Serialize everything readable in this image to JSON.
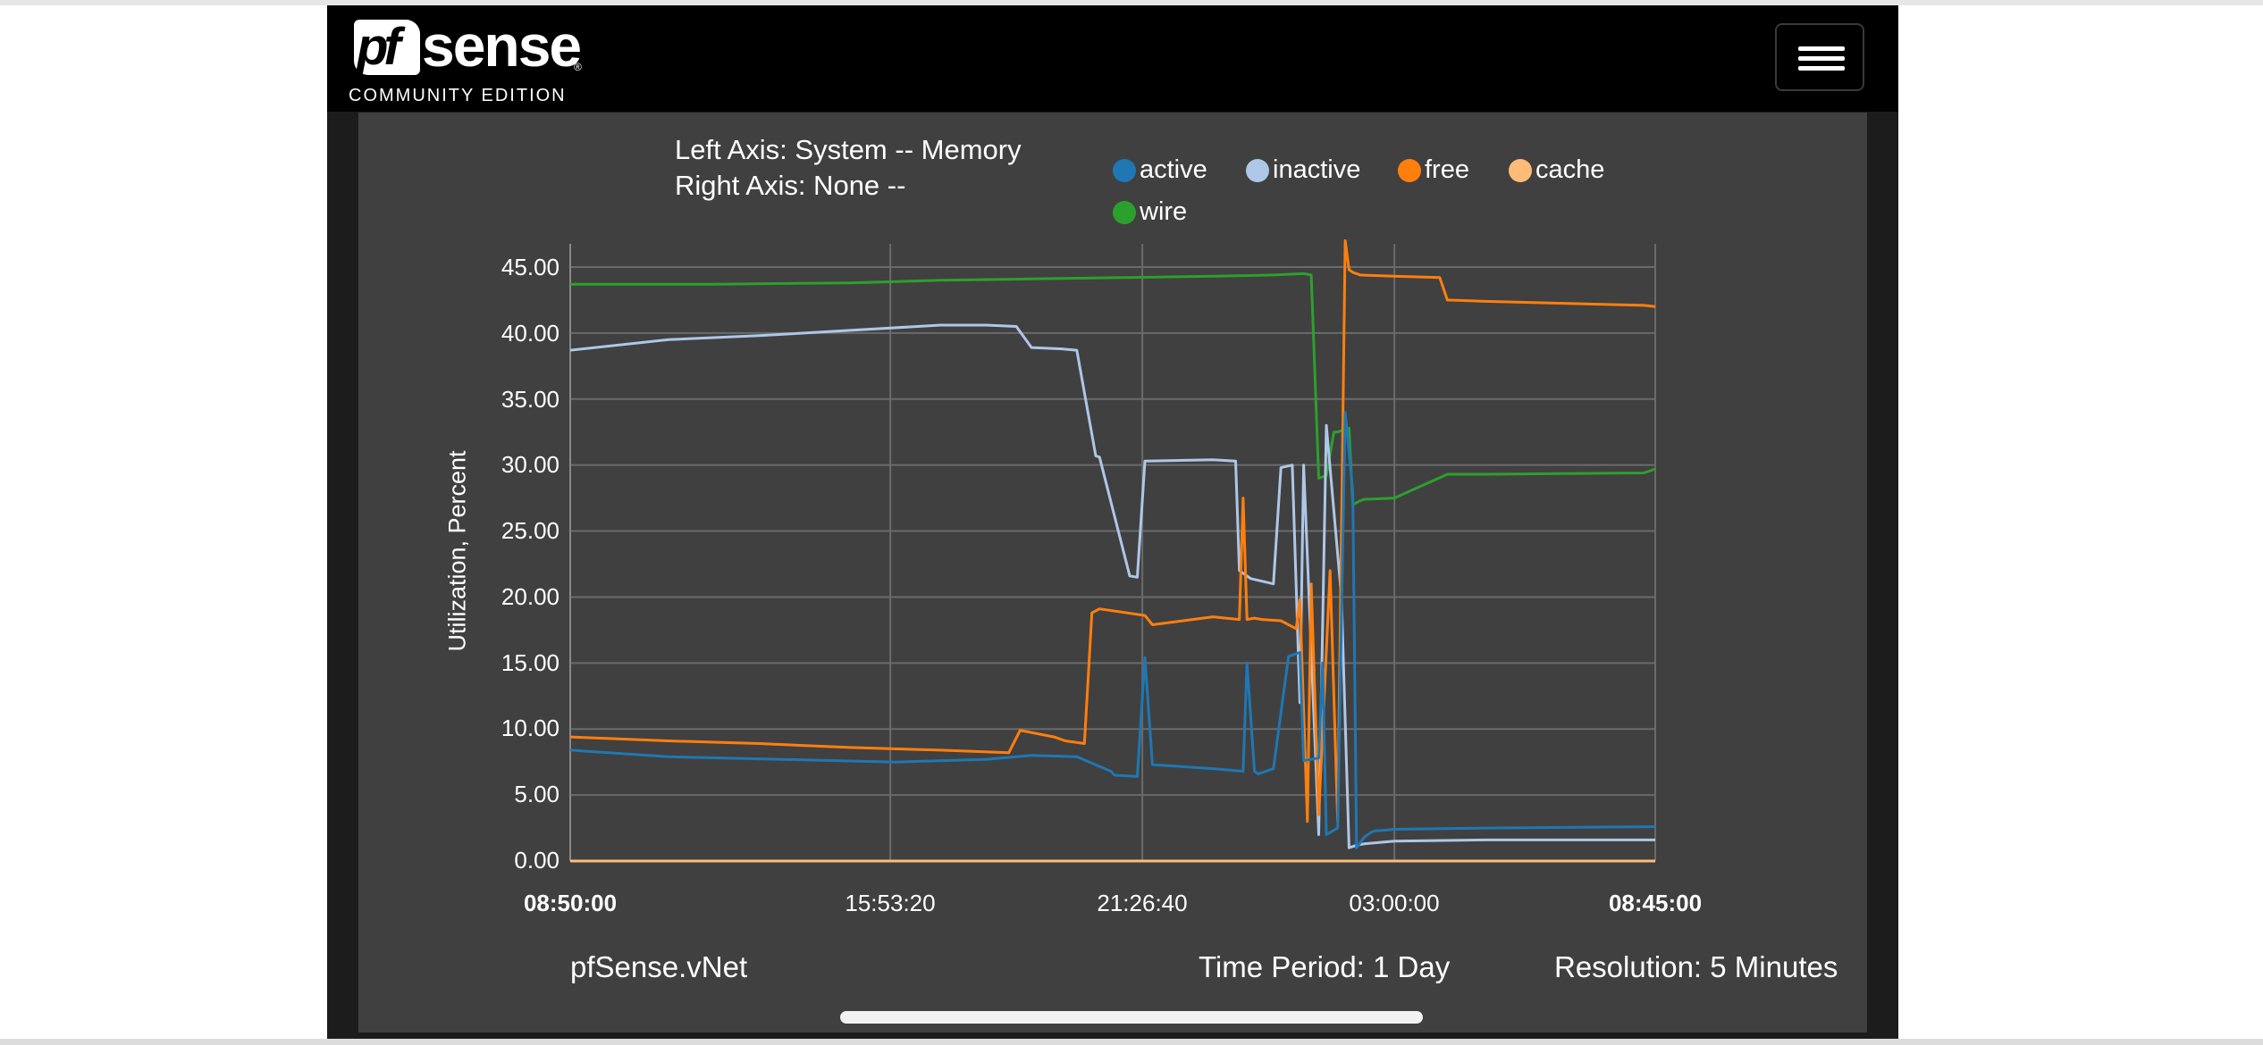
{
  "brand": {
    "logo_mark": "pf",
    "logo_word": "sense",
    "registered": "®",
    "edition": "COMMUNITY EDITION"
  },
  "navbar": {
    "menu_icon": "hamburger-menu-icon"
  },
  "graph": {
    "title_left": "Left Axis: System -- Memory",
    "title_right": "Right Axis: None --",
    "host": "pfSense.vNet",
    "time_period": "Time Period: 1 Day",
    "resolution": "Resolution: 5 Minutes"
  },
  "chart_data": {
    "type": "line",
    "ylabel": "Utilization, Percent",
    "ylim": [
      0,
      45
    ],
    "yticks": [
      "0.00",
      "5.00",
      "10.00",
      "15.00",
      "20.00",
      "25.00",
      "30.00",
      "35.00",
      "40.00",
      "45.00"
    ],
    "xtick_labels": [
      "08:50:00",
      "15:53:20",
      "21:26:40",
      "03:00:00",
      "08:45:00"
    ],
    "xtick_bold": [
      true,
      false,
      false,
      false,
      true
    ],
    "x_range": [
      "08:50:00",
      "08:45:00"
    ],
    "grid": true,
    "legend_position": "top-right",
    "series": [
      {
        "name": "active",
        "color": "#1f77b4",
        "x": [
          "08:50:00",
          "11:00:00",
          "13:30:00",
          "16:00:00",
          "18:00:00",
          "19:00:00",
          "20:00:00",
          "20:45:00",
          "20:50:00",
          "21:20:00",
          "21:30:00",
          "21:40:00",
          "23:00:00",
          "23:40:00",
          "23:45:00",
          "23:55:00",
          "00:00:00",
          "00:20:00",
          "00:40:00",
          "00:55:00",
          "01:00:00",
          "01:20:00",
          "01:25:00",
          "01:30:00",
          "01:45:00",
          "01:55:00",
          "02:05:00",
          "02:10:00",
          "02:20:00",
          "02:30:00",
          "02:35:00",
          "02:40:00",
          "03:00:00",
          "05:00:00",
          "08:45:00"
        ],
        "values": [
          8.4,
          7.9,
          7.7,
          7.5,
          7.7,
          8.0,
          7.9,
          6.8,
          6.5,
          6.4,
          15.4,
          7.3,
          7.0,
          6.8,
          15.0,
          6.8,
          6.6,
          7.0,
          15.5,
          15.8,
          7.6,
          7.8,
          15.0,
          2.0,
          2.5,
          34.0,
          28.0,
          1.0,
          1.8,
          2.2,
          2.3,
          2.3,
          2.4,
          2.5,
          2.6
        ]
      },
      {
        "name": "inactive",
        "color": "#aec7e8",
        "x": [
          "08:50:00",
          "11:00:00",
          "13:00:00",
          "15:00:00",
          "17:00:00",
          "18:00:00",
          "18:40:00",
          "19:00:00",
          "19:40:00",
          "20:00:00",
          "20:25:00",
          "20:30:00",
          "21:10:00",
          "21:20:00",
          "21:30:00",
          "23:00:00",
          "23:30:00",
          "23:35:00",
          "23:50:00",
          "00:20:00",
          "00:30:00",
          "00:45:00",
          "00:55:00",
          "01:00:00",
          "01:20:00",
          "01:30:00",
          "01:50:00",
          "02:00:00",
          "02:10:00",
          "02:20:00",
          "03:00:00",
          "05:00:00",
          "08:45:00"
        ],
        "values": [
          38.7,
          39.5,
          39.8,
          40.2,
          40.6,
          40.6,
          40.5,
          38.9,
          38.8,
          38.7,
          30.7,
          30.6,
          21.6,
          21.5,
          30.3,
          30.4,
          30.3,
          22.0,
          21.4,
          21.0,
          29.8,
          30.0,
          12.0,
          30.0,
          2.0,
          33.0,
          20.0,
          1.0,
          1.2,
          1.3,
          1.5,
          1.6,
          1.6
        ]
      },
      {
        "name": "free",
        "color": "#ff7f0e",
        "x": [
          "08:50:00",
          "11:00:00",
          "13:00:00",
          "15:00:00",
          "17:00:00",
          "18:30:00",
          "18:45:00",
          "19:30:00",
          "19:45:00",
          "20:10:00",
          "20:20:00",
          "20:30:00",
          "21:30:00",
          "21:40:00",
          "23:00:00",
          "23:35:00",
          "23:40:00",
          "23:45:00",
          "23:55:00",
          "00:05:00",
          "00:30:00",
          "00:50:00",
          "00:55:00",
          "01:05:00",
          "01:10:00",
          "01:20:00",
          "01:35:00",
          "01:45:00",
          "01:55:00",
          "02:00:00",
          "02:05:00",
          "02:15:00",
          "03:00:00",
          "04:00:00",
          "04:10:00",
          "05:00:00",
          "08:30:00",
          "08:45:00"
        ],
        "values": [
          9.4,
          9.1,
          8.9,
          8.6,
          8.4,
          8.2,
          9.9,
          9.4,
          9.1,
          8.9,
          18.8,
          19.1,
          18.6,
          17.9,
          18.5,
          18.3,
          27.5,
          18.3,
          18.4,
          18.3,
          18.2,
          17.6,
          19.8,
          3.0,
          21.0,
          3.5,
          22.0,
          3.0,
          47.0,
          44.8,
          44.6,
          44.4,
          44.3,
          44.2,
          42.5,
          42.4,
          42.1,
          42.0
        ]
      },
      {
        "name": "cache",
        "color": "#ffbb78",
        "x": [
          "08:50:00",
          "08:45:00"
        ],
        "values": [
          0.0,
          0.0
        ]
      },
      {
        "name": "wire",
        "color": "#2ca02c",
        "x": [
          "08:50:00",
          "12:00:00",
          "15:00:00",
          "17:00:00",
          "19:00:00",
          "21:00:00",
          "23:00:00",
          "00:20:00",
          "01:00:00",
          "01:10:00",
          "01:20:00",
          "01:30:00",
          "01:40:00",
          "01:45:00",
          "02:00:00",
          "02:05:00",
          "02:15:00",
          "02:20:00",
          "03:00:00",
          "04:10:00",
          "05:00:00",
          "08:30:00",
          "08:45:00"
        ],
        "values": [
          43.7,
          43.7,
          43.8,
          44.0,
          44.1,
          44.2,
          44.3,
          44.4,
          44.5,
          44.4,
          29.0,
          29.2,
          32.5,
          32.5,
          32.8,
          27.0,
          27.3,
          27.4,
          27.5,
          29.3,
          29.3,
          29.4,
          29.7
        ]
      }
    ]
  }
}
